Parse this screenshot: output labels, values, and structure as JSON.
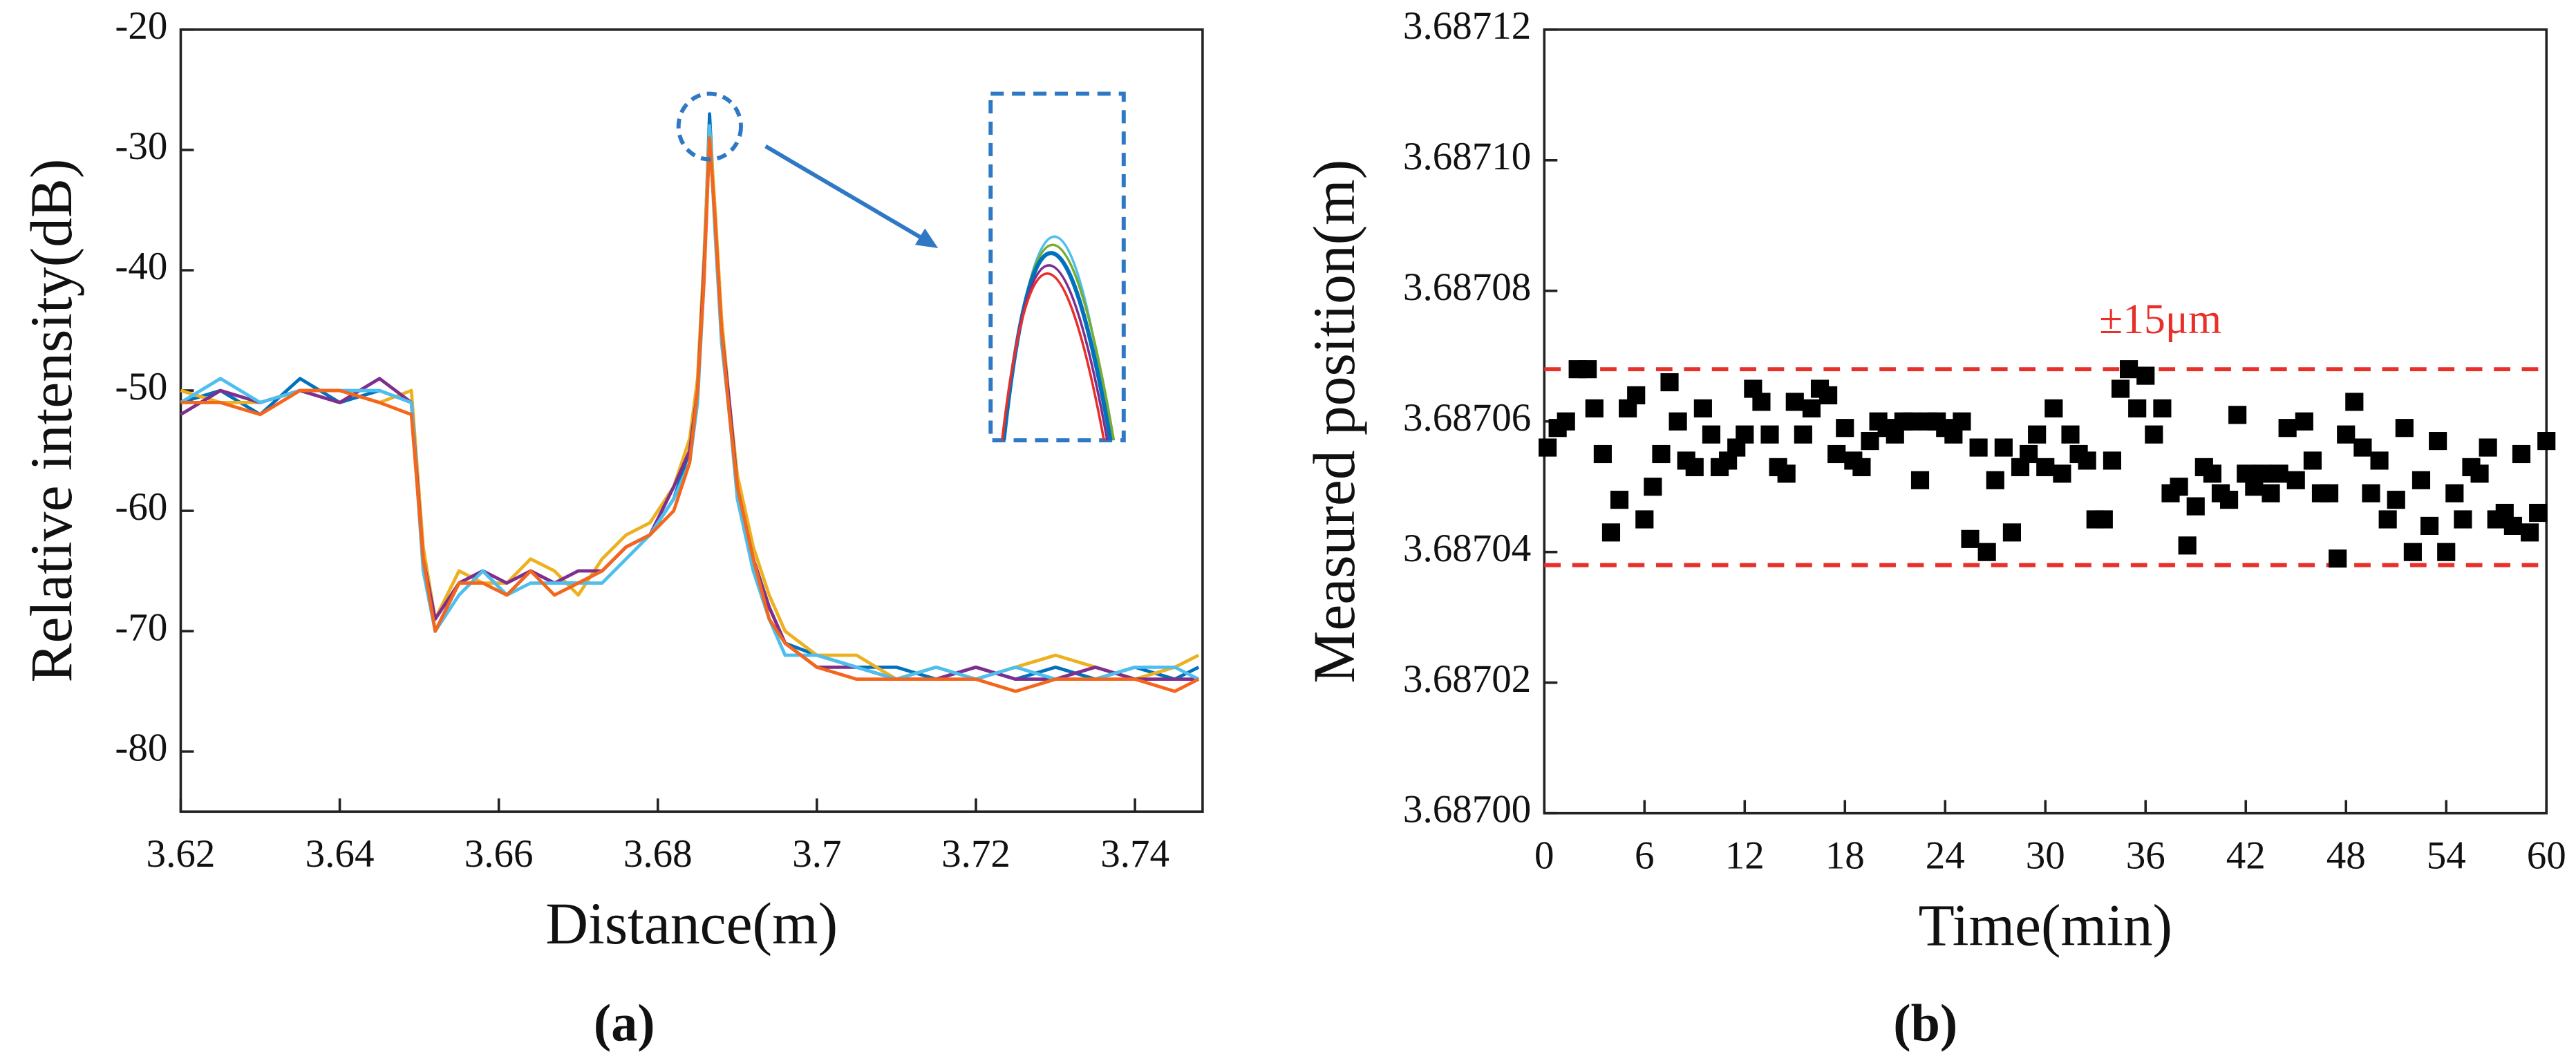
{
  "chart_data": [
    {
      "type": "line",
      "caption": "(a)",
      "xlabel": "Distance(m)",
      "ylabel": "Relative intensity(dB)",
      "x": [
        3.62,
        3.625,
        3.63,
        3.635,
        3.64,
        3.645,
        3.649,
        3.6505,
        3.652,
        3.655,
        3.658,
        3.661,
        3.664,
        3.667,
        3.67,
        3.673,
        3.676,
        3.679,
        3.682,
        3.684,
        3.685,
        3.6858,
        3.6865,
        3.6872,
        3.688,
        3.689,
        3.69,
        3.692,
        3.694,
        3.696,
        3.7,
        3.705,
        3.71,
        3.715,
        3.72,
        3.725,
        3.73,
        3.735,
        3.74,
        3.745,
        3.748
      ],
      "series": [
        {
          "color": "#0072bd",
          "values": [
            -51,
            -50,
            -52,
            -49,
            -51,
            -50,
            -51,
            -64,
            -70,
            -66,
            -65,
            -67,
            -65,
            -66,
            -66,
            -65,
            -63,
            -62,
            -59,
            -55,
            -50,
            -40,
            -27,
            -36,
            -45,
            -52,
            -58,
            -64,
            -68,
            -71,
            -72,
            -73,
            -73,
            -74,
            -73,
            -74,
            -73,
            -74,
            -73,
            -74,
            -73
          ]
        },
        {
          "color": "#edb120",
          "values": [
            -50,
            -51,
            -51,
            -50,
            -50,
            -51,
            -50,
            -63,
            -69,
            -65,
            -66,
            -66,
            -64,
            -65,
            -67,
            -64,
            -62,
            -61,
            -58,
            -54,
            -49,
            -39,
            -28,
            -35,
            -44,
            -51,
            -57,
            -63,
            -67,
            -70,
            -72,
            -72,
            -74,
            -73,
            -74,
            -73,
            -72,
            -73,
            -74,
            -73,
            -72
          ]
        },
        {
          "color": "#7e2f8e",
          "values": [
            -52,
            -50,
            -51,
            -50,
            -51,
            -49,
            -51,
            -64,
            -69,
            -66,
            -65,
            -66,
            -65,
            -66,
            -65,
            -65,
            -63,
            -62,
            -58,
            -55,
            -50,
            -40,
            -29,
            -36,
            -45,
            -51,
            -58,
            -64,
            -68,
            -71,
            -73,
            -73,
            -74,
            -74,
            -73,
            -74,
            -74,
            -73,
            -74,
            -74,
            -74
          ]
        },
        {
          "color": "#4dbeee",
          "values": [
            -51,
            -49,
            -51,
            -50,
            -50,
            -50,
            -51,
            -65,
            -70,
            -67,
            -65,
            -67,
            -66,
            -66,
            -66,
            -66,
            -64,
            -62,
            -59,
            -56,
            -51,
            -41,
            -28,
            -37,
            -46,
            -52,
            -59,
            -65,
            -69,
            -72,
            -72,
            -73,
            -74,
            -73,
            -74,
            -73,
            -74,
            -74,
            -73,
            -73,
            -74
          ]
        },
        {
          "color": "#f4661b",
          "values": [
            -51,
            -51,
            -52,
            -50,
            -50,
            -51,
            -52,
            -64,
            -70,
            -66,
            -66,
            -67,
            -65,
            -67,
            -66,
            -65,
            -63,
            -62,
            -60,
            -56,
            -50,
            -41,
            -29,
            -36,
            -45,
            -52,
            -58,
            -64,
            -69,
            -71,
            -73,
            -74,
            -74,
            -74,
            -74,
            -75,
            -74,
            -74,
            -74,
            -75,
            -74
          ]
        }
      ],
      "xlim": [
        3.62,
        3.7485
      ],
      "ylim": [
        -85,
        -20
      ],
      "xticks": [
        3.62,
        3.64,
        3.66,
        3.68,
        3.7,
        3.72,
        3.74
      ],
      "yticks": [
        -80,
        -70,
        -60,
        -50,
        -40,
        -30,
        -20
      ]
    },
    {
      "type": "scatter",
      "caption": "(b)",
      "xlabel": "Time(min)",
      "ylabel": "Measured position(m)",
      "annotation": "±15μm",
      "color": "#000000",
      "line_color": "#e8302b",
      "hlines": [
        3.687068,
        3.687038
      ],
      "x": [
        0.2,
        0.8,
        1.3,
        2,
        2.6,
        3,
        3.5,
        4,
        4.5,
        5,
        5.5,
        6,
        6.5,
        7,
        7.5,
        8,
        8.5,
        9,
        9.5,
        10,
        10.5,
        11,
        11.5,
        12,
        12.5,
        13,
        13.5,
        14,
        14.5,
        15,
        15.5,
        16,
        16.5,
        17,
        17.5,
        18,
        18.5,
        19,
        19.5,
        20,
        20.5,
        21,
        21.5,
        22,
        22.5,
        23,
        23.5,
        24,
        24.5,
        25,
        25.5,
        26,
        26.5,
        27,
        27.5,
        28,
        28.5,
        29,
        29.5,
        30,
        30.5,
        31,
        31.5,
        32,
        32.5,
        33,
        33.5,
        34,
        34.5,
        35,
        35.5,
        36,
        36.5,
        37,
        37.5,
        38,
        38.5,
        39,
        39.5,
        40,
        40.5,
        41,
        41.5,
        42,
        42.5,
        43,
        43.5,
        44,
        44.5,
        45,
        45.5,
        46,
        46.5,
        47,
        47.5,
        48,
        48.5,
        49,
        49.5,
        50,
        50.5,
        51,
        51.5,
        52,
        52.5,
        53,
        53.5,
        54,
        54.5,
        55,
        55.5,
        56,
        56.5,
        57,
        57.5,
        58,
        58.5,
        59,
        59.5,
        60
      ],
      "values": [
        3.687056,
        3.687059,
        3.68706,
        3.687068,
        3.687068,
        3.687062,
        3.687055,
        3.687043,
        3.687048,
        3.687062,
        3.687064,
        3.687045,
        3.68705,
        3.687055,
        3.687066,
        3.68706,
        3.687054,
        3.687053,
        3.687062,
        3.687058,
        3.687053,
        3.687054,
        3.687056,
        3.687058,
        3.687065,
        3.687063,
        3.687058,
        3.687053,
        3.687052,
        3.687063,
        3.687058,
        3.687062,
        3.687065,
        3.687064,
        3.687055,
        3.687059,
        3.687054,
        3.687053,
        3.687057,
        3.68706,
        3.687059,
        3.687058,
        3.68706,
        3.68706,
        3.687051,
        3.68706,
        3.68706,
        3.687059,
        3.687058,
        3.68706,
        3.687042,
        3.687056,
        3.68704,
        3.687051,
        3.687056,
        3.687043,
        3.687053,
        3.687055,
        3.687058,
        3.687053,
        3.687062,
        3.687052,
        3.687058,
        3.687055,
        3.687054,
        3.687045,
        3.687045,
        3.687054,
        3.687065,
        3.687068,
        3.687062,
        3.687067,
        3.687058,
        3.687062,
        3.687049,
        3.68705,
        3.687041,
        3.687047,
        3.687053,
        3.687052,
        3.687049,
        3.687048,
        3.687061,
        3.687052,
        3.68705,
        3.687052,
        3.687049,
        3.687052,
        3.687059,
        3.687051,
        3.68706,
        3.687054,
        3.687049,
        3.687049,
        3.687039,
        3.687058,
        3.687063,
        3.687056,
        3.687049,
        3.687054,
        3.687045,
        3.687048,
        3.687059,
        3.68704,
        3.687051,
        3.687044,
        3.687057,
        3.68704,
        3.687049,
        3.687045,
        3.687053,
        3.687052,
        3.687056,
        3.687045,
        3.687046,
        3.687044,
        3.687055,
        3.687043,
        3.687046,
        3.687057
      ],
      "xlim": [
        0,
        60
      ],
      "ylim": [
        3.687,
        3.68712
      ],
      "xticks": [
        0,
        6,
        12,
        18,
        24,
        30,
        36,
        42,
        48,
        54,
        60
      ],
      "yticks": [
        {
          "value": 3.687,
          "label": "3.68700"
        },
        3.68702,
        3.68704,
        3.68706,
        3.68708,
        {
          "value": 3.6871,
          "label": "3.68710"
        },
        3.68712
      ]
    }
  ]
}
